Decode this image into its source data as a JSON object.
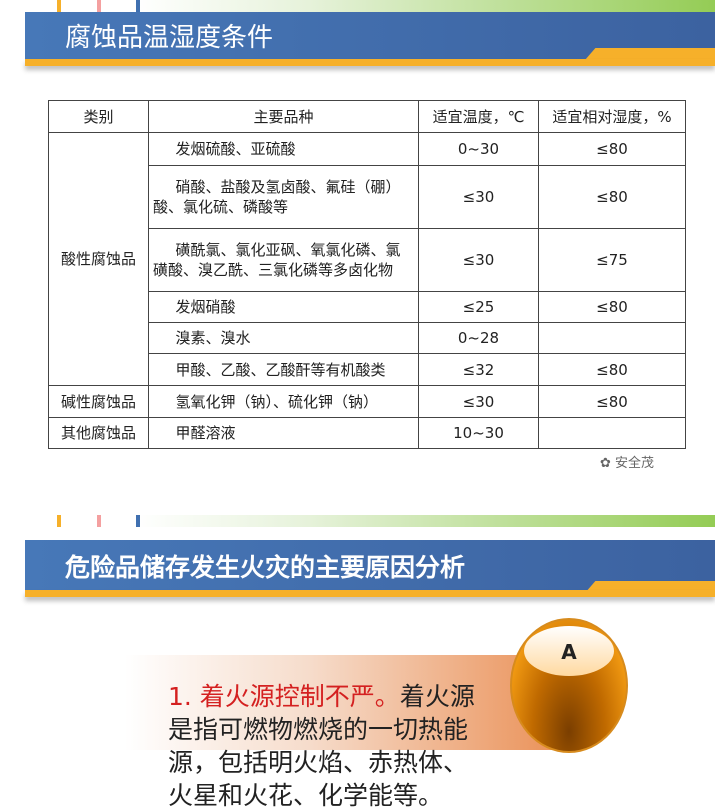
{
  "section1": {
    "title": "腐蚀品温湿度条件"
  },
  "table": {
    "headers": [
      "类别",
      "主要品种",
      "适宜温度，℃",
      "适宜相对湿度，%"
    ],
    "groups": [
      "酸性腐蚀品",
      "碱性腐蚀品",
      "其他腐蚀品"
    ],
    "rows": [
      {
        "item": "发烟硫酸、亚硫酸",
        "temp": "0~30",
        "hum": "≤80"
      },
      {
        "item": "硝酸、盐酸及氢卤酸、氟硅（硼）酸、氯化硫、磷酸等",
        "temp": "≤30",
        "hum": "≤80"
      },
      {
        "item": "磺酰氯、氯化亚砜、氧氯化磷、氯磺酸、溴乙酰、三氯化磷等多卤化物",
        "temp": "≤30",
        "hum": "≤75"
      },
      {
        "item": "发烟硝酸",
        "temp": "≤25",
        "hum": "≤80"
      },
      {
        "item": "溴素、溴水",
        "temp": "0~28",
        "hum": ""
      },
      {
        "item": "甲酸、乙酸、乙酸酐等有机酸类",
        "temp": "≤32",
        "hum": "≤80"
      },
      {
        "item": "氢氧化钾（钠）、硫化钾（钠）",
        "temp": "≤30",
        "hum": "≤80"
      },
      {
        "item": "甲醛溶液",
        "temp": "10~30",
        "hum": ""
      }
    ]
  },
  "watermark": "安全茂",
  "section2": {
    "title": "危险品储存发生火灾的主要原因分析"
  },
  "badge": "A",
  "point": {
    "heading": "1. 着火源控制不严。",
    "body": "着火源是指可燃物燃烧的一切热能源，包括明火焰、赤热体、火星和火花、化学能等。"
  },
  "colors": {
    "blue": "#4070b0",
    "orange": "#f6b02a",
    "green": "#94cc55",
    "red": "#d42020"
  }
}
